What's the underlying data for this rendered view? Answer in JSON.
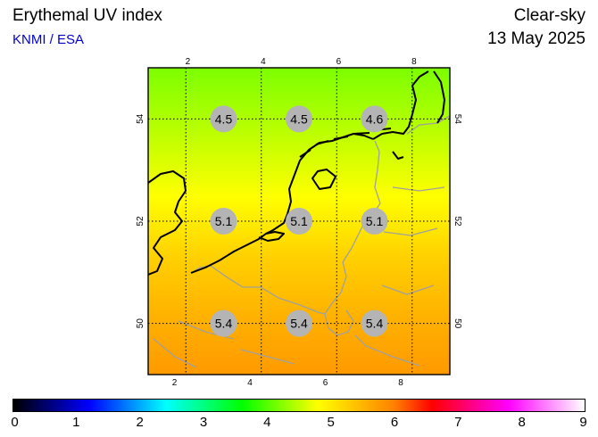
{
  "header": {
    "title": "Erythemal UV index",
    "source": "KNMI / ESA",
    "product": "Clear-sky",
    "date": "13 May 2025"
  },
  "map": {
    "lon_range": [
      1,
      9
    ],
    "lat_range": [
      49,
      55
    ],
    "lon_ticks": [
      "2",
      "4",
      "6",
      "8"
    ],
    "lat_ticks": [
      "54",
      "52",
      "50"
    ],
    "field_colors": [
      "#7cff00",
      "#b8ff00",
      "#ffff00",
      "#ffd000",
      "#ffb000",
      "#ff9a00"
    ],
    "coastline_color": "#000000",
    "border_color": "#a0a0a0",
    "marker_color": "#b4b4b4",
    "grid": true,
    "uv_points": [
      {
        "lon": 3,
        "lat": 54,
        "value": "4.5"
      },
      {
        "lon": 5,
        "lat": 54,
        "value": "4.5"
      },
      {
        "lon": 7,
        "lat": 54,
        "value": "4.6"
      },
      {
        "lon": 3,
        "lat": 52,
        "value": "5.1"
      },
      {
        "lon": 5,
        "lat": 52,
        "value": "5.1"
      },
      {
        "lon": 7,
        "lat": 52,
        "value": "5.1"
      },
      {
        "lon": 3,
        "lat": 50,
        "value": "5.4"
      },
      {
        "lon": 5,
        "lat": 50,
        "value": "5.4"
      },
      {
        "lon": 7,
        "lat": 50,
        "value": "5.4"
      }
    ]
  },
  "colorbar": {
    "ticks": [
      "0",
      "1",
      "2",
      "3",
      "4",
      "5",
      "6",
      "7",
      "8",
      "9"
    ],
    "colors": [
      "#000000",
      "#000080",
      "#0000ff",
      "#0080ff",
      "#00ffff",
      "#00ff80",
      "#00ff00",
      "#80ff00",
      "#ffff00",
      "#ffc000",
      "#ff8000",
      "#ff0000",
      "#ff0080",
      "#ff00ff",
      "#ff80ff",
      "#ffffff"
    ]
  }
}
